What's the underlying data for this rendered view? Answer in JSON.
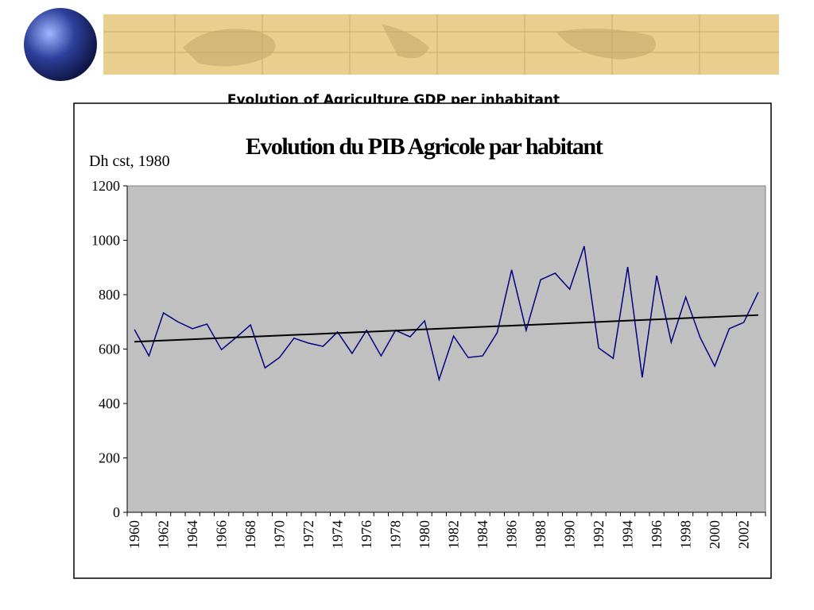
{
  "header": {
    "title": "Evolution of Agriculture GDP per inhabitant"
  },
  "chart_data": {
    "type": "line",
    "title": "Evolution du PIB Agricole par habitant",
    "y_label": "Dh cst, 1980",
    "categories": [
      "1960",
      null,
      "1962",
      null,
      "1964",
      null,
      "1966",
      null,
      "1968",
      null,
      "1970",
      null,
      "1972",
      null,
      "1974",
      null,
      "1976",
      null,
      "1978",
      null,
      "1980",
      null,
      "1982",
      null,
      "1984",
      null,
      "1986",
      null,
      "1988",
      null,
      "1990",
      null,
      "1992",
      null,
      "1994",
      null,
      "1996",
      null,
      "1998",
      null,
      "2000",
      null,
      "2002",
      null
    ],
    "values": [
      672,
      575,
      733,
      700,
      675,
      692,
      598,
      642,
      689,
      531,
      569,
      640,
      622,
      610,
      663,
      584,
      669,
      575,
      669,
      645,
      704,
      488,
      648,
      569,
      575,
      660,
      891,
      669,
      855,
      879,
      820,
      978,
      604,
      566,
      902,
      496,
      870,
      625,
      791,
      642,
      537,
      675,
      698,
      809
    ],
    "color": "#000080",
    "trend": [
      627,
      725
    ],
    "trend_color": "#000000",
    "ylim": [
      0,
      1200
    ],
    "yticks": [
      0,
      200,
      400,
      600,
      800,
      1000,
      1200
    ],
    "plot_background": "#c0c0c0"
  }
}
